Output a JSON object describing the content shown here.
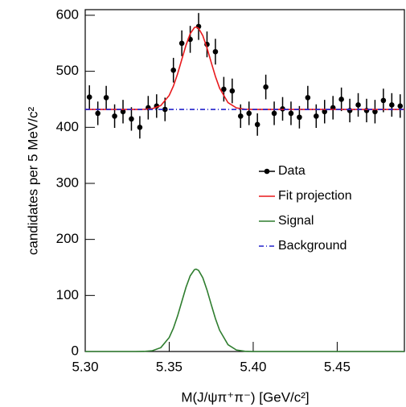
{
  "chart_data": {
    "type": "errorbar",
    "x_label": "M(J/ψπ⁺π⁻) [GeV/c²]",
    "y_label": "candidates per 5 MeV/c²",
    "xlim": [
      5.3,
      5.49
    ],
    "ylim": [
      0,
      610
    ],
    "xticks": [
      {
        "value": 5.3,
        "label": "5.30"
      },
      5.35,
      {
        "value": 5.4,
        "label": "5.40"
      },
      5.45
    ],
    "yticks": [
      0,
      100,
      200,
      300,
      400,
      500,
      600
    ],
    "legend": "right",
    "series": [
      {
        "name": "Data",
        "color": "#000000",
        "style": "points",
        "x": [
          5.3025,
          5.3075,
          5.3125,
          5.3175,
          5.3225,
          5.3275,
          5.3325,
          5.3375,
          5.3425,
          5.3475,
          5.3525,
          5.3575,
          5.3625,
          5.3675,
          5.3725,
          5.3775,
          5.3825,
          5.3875,
          5.3925,
          5.3975,
          5.4025,
          5.4075,
          5.4125,
          5.4175,
          5.4225,
          5.4275,
          5.4325,
          5.4375,
          5.4425,
          5.4475,
          5.4525,
          5.4575,
          5.4625,
          5.4675,
          5.4725,
          5.4775,
          5.4825,
          5.4875
        ],
        "values": [
          454,
          425,
          453,
          420,
          428,
          415,
          400,
          435,
          438,
          432,
          502,
          550,
          557,
          580,
          548,
          535,
          468,
          465,
          420,
          425,
          405,
          472,
          425,
          433,
          425,
          418,
          453,
          420,
          428,
          435,
          450,
          430,
          440,
          430,
          428,
          448,
          440,
          438
        ],
        "errors": [
          21,
          21,
          21,
          21,
          21,
          21,
          20,
          21,
          21,
          21,
          22,
          23,
          24,
          24,
          23,
          23,
          22,
          22,
          21,
          21,
          20,
          22,
          21,
          21,
          21,
          20,
          21,
          21,
          21,
          21,
          21,
          21,
          21,
          21,
          21,
          21,
          21,
          21
        ]
      },
      {
        "name": "Fit projection",
        "color": "#e8191c",
        "style": "solid",
        "x": [
          5.3,
          5.32,
          5.33,
          5.335,
          5.34,
          5.345,
          5.35,
          5.3525,
          5.355,
          5.3575,
          5.36,
          5.3625,
          5.365,
          5.366,
          5.3675,
          5.37,
          5.3725,
          5.375,
          5.3775,
          5.38,
          5.385,
          5.39,
          5.395,
          5.4,
          5.42,
          5.49
        ],
        "values": [
          432,
          432,
          432,
          432.2,
          433.4,
          438.9,
          457,
          473.7,
          495.6,
          521.2,
          546.6,
          567.1,
          578,
          579,
          576.7,
          563.6,
          541.7,
          515.9,
          490.9,
          469.9,
          444.1,
          434.7,
          432.4,
          432,
          432,
          432
        ]
      },
      {
        "name": "Signal",
        "color": "#2e7d2e",
        "style": "solid",
        "x": [
          5.3,
          5.32,
          5.33,
          5.335,
          5.34,
          5.345,
          5.35,
          5.3525,
          5.355,
          5.3575,
          5.36,
          5.3625,
          5.365,
          5.366,
          5.3675,
          5.37,
          5.3725,
          5.375,
          5.3775,
          5.38,
          5.385,
          5.39,
          5.395,
          5.4,
          5.42,
          5.49
        ],
        "values": [
          0,
          0,
          0,
          0.2,
          1.4,
          6.9,
          25,
          41.7,
          63.6,
          89.2,
          114.6,
          135.1,
          146,
          147,
          144.7,
          131.6,
          109.7,
          83.9,
          58.9,
          37.9,
          12.1,
          2.7,
          0.4,
          0,
          0,
          0
        ]
      },
      {
        "name": "Background",
        "color": "#2222cc",
        "style": "dashdot",
        "x": [
          5.3,
          5.49
        ],
        "values": [
          432,
          432
        ]
      }
    ]
  }
}
